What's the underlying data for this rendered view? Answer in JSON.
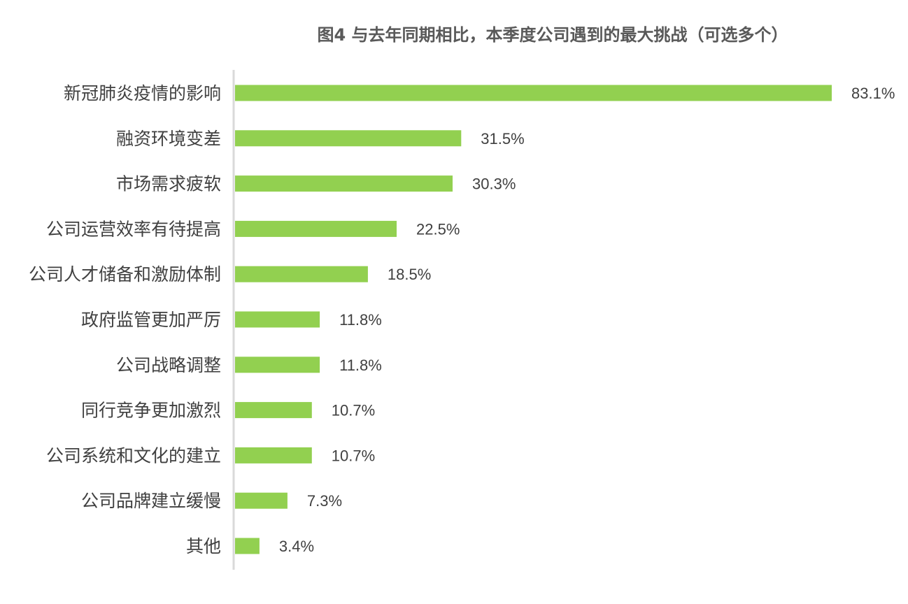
{
  "chart_data": {
    "type": "bar",
    "orientation": "horizontal",
    "title": "图4 与去年同期相比，本季度公司遇到的最大挑战（可选多个）",
    "categories": [
      "新冠肺炎疫情的影响",
      "融资环境变差",
      "市场需求疲软",
      "公司运营效率有待提高",
      "公司人才储备和激励体制",
      "政府监管更加严厉",
      "公司战略调整",
      "同行竞争更加激烈",
      "公司系统和文化的建立",
      "公司品牌建立缓慢",
      "其他"
    ],
    "values": [
      83.1,
      31.5,
      30.3,
      22.5,
      18.5,
      11.8,
      11.8,
      10.7,
      10.7,
      7.3,
      3.4
    ],
    "value_labels": [
      "83.1%",
      "31.5%",
      "30.3%",
      "22.5%",
      "18.5%",
      "11.8%",
      "11.8%",
      "10.7%",
      "10.7%",
      "7.3%",
      "3.4%"
    ],
    "xlim": [
      0,
      83.1
    ],
    "bar_color": "#92d050",
    "axis_color": "#d9d9d9",
    "grid": false,
    "legend": "none"
  }
}
